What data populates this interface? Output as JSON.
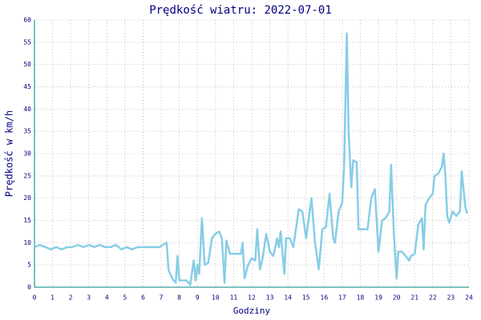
{
  "chart_data": {
    "type": "line",
    "title": "Prędkość wiatru: 2022-07-01",
    "xlabel": "Godziny",
    "ylabel": "Prędkość w km/h",
    "grid": true,
    "xlim": [
      0,
      24
    ],
    "ylim": [
      0,
      60
    ],
    "xticks": [
      0,
      1,
      2,
      3,
      4,
      5,
      6,
      7,
      8,
      9,
      10,
      11,
      12,
      13,
      14,
      15,
      16,
      17,
      18,
      19,
      20,
      21,
      22,
      23,
      24
    ],
    "yticks": [
      0,
      5,
      10,
      15,
      20,
      25,
      30,
      35,
      40,
      45,
      50,
      55,
      60
    ],
    "series": [
      {
        "name": "Prędkość wiatru",
        "color": "#87cde6",
        "x": [
          0,
          0.3,
          0.6,
          0.9,
          1.2,
          1.5,
          1.8,
          2.1,
          2.4,
          2.7,
          3.0,
          3.3,
          3.6,
          3.9,
          4.2,
          4.5,
          4.8,
          5.1,
          5.4,
          5.7,
          6.0,
          6.3,
          6.6,
          6.9,
          7.1,
          7.3,
          7.4,
          7.6,
          7.8,
          7.9,
          8.0,
          8.2,
          8.4,
          8.6,
          8.8,
          8.9,
          9.0,
          9.1,
          9.25,
          9.4,
          9.6,
          9.8,
          10.0,
          10.2,
          10.35,
          10.5,
          10.6,
          10.8,
          11.0,
          11.2,
          11.4,
          11.5,
          11.6,
          11.8,
          12.0,
          12.2,
          12.3,
          12.45,
          12.6,
          12.8,
          13.0,
          13.2,
          13.4,
          13.5,
          13.6,
          13.8,
          13.9,
          14.1,
          14.3,
          14.6,
          14.8,
          15.0,
          15.3,
          15.5,
          15.7,
          15.9,
          16.1,
          16.3,
          16.5,
          16.6,
          16.8,
          17.0,
          17.1,
          17.25,
          17.35,
          17.5,
          17.6,
          17.8,
          17.9,
          18.1,
          18.4,
          18.6,
          18.8,
          19.0,
          19.2,
          19.4,
          19.6,
          19.7,
          19.85,
          20.0,
          20.1,
          20.3,
          20.5,
          20.7,
          20.8,
          21.0,
          21.2,
          21.4,
          21.5,
          21.6,
          21.8,
          22.0,
          22.1,
          22.3,
          22.5,
          22.6,
          22.7,
          22.8,
          22.9,
          23.1,
          23.3,
          23.5,
          23.6,
          23.7,
          23.8,
          23.9
        ],
        "values": [
          9,
          9.5,
          9,
          8.5,
          9,
          8.5,
          9,
          9,
          9.5,
          9,
          9.5,
          9,
          9.5,
          9,
          9,
          9.5,
          8.5,
          9,
          8.5,
          9,
          9,
          9,
          9,
          9,
          9.5,
          10,
          4,
          2,
          1,
          7,
          1.5,
          1.5,
          1.5,
          0.5,
          6,
          1.5,
          5,
          3,
          15.5,
          5,
          5.5,
          11,
          12,
          12.5,
          11,
          1,
          10.5,
          7.5,
          7.5,
          7.5,
          7.5,
          10,
          2,
          5,
          6.5,
          6,
          13,
          4,
          6.5,
          12,
          8,
          7,
          11,
          9,
          12.5,
          3,
          11,
          11,
          9,
          17.5,
          17,
          11,
          20,
          10,
          4,
          13,
          13.5,
          21,
          11,
          10,
          17,
          19,
          27,
          57,
          35,
          22.5,
          28.5,
          28,
          13,
          13,
          13,
          20,
          22,
          8,
          15,
          15.5,
          17,
          27.5,
          12,
          2,
          8,
          8,
          7,
          6,
          7,
          7.5,
          14,
          15.5,
          8.5,
          18.5,
          20,
          21,
          25,
          25.5,
          27,
          30,
          25,
          16,
          14.5,
          17,
          16,
          17,
          26,
          22,
          18,
          16.5
        ]
      }
    ]
  }
}
